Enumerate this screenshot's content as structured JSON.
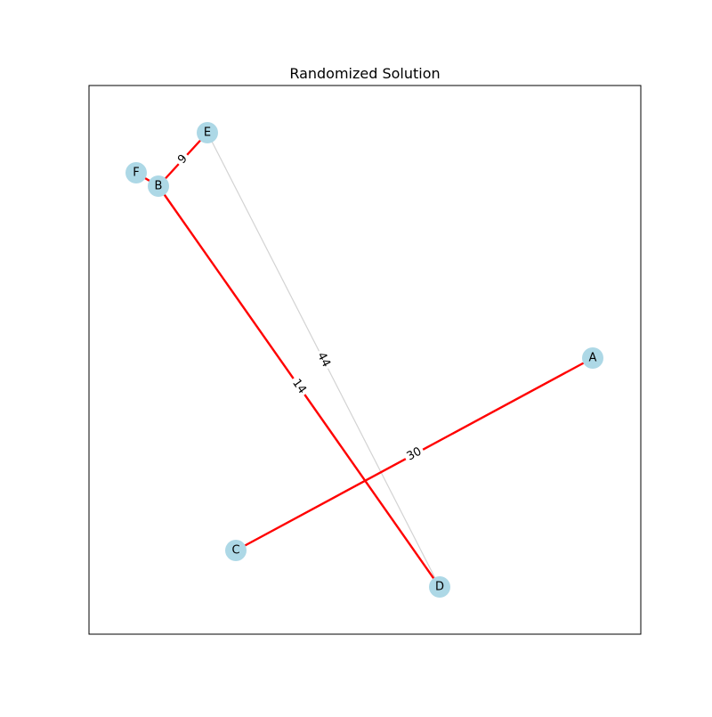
{
  "title": "Randomized Solution",
  "colors": {
    "node_fill": "#add8e6",
    "selected_edge": "#ff0000",
    "other_edge": "#d3d3d3",
    "label_bg": "#ffffff",
    "frame": "#000000"
  },
  "nodes": [
    {
      "id": "A",
      "label": "A"
    },
    {
      "id": "B",
      "label": "B"
    },
    {
      "id": "C",
      "label": "C"
    },
    {
      "id": "D",
      "label": "D"
    },
    {
      "id": "E",
      "label": "E"
    },
    {
      "id": "F",
      "label": "F"
    }
  ],
  "edges": [
    {
      "source": "E",
      "target": "D",
      "weight": "44",
      "selected": false
    },
    {
      "source": "F",
      "target": "B",
      "weight": "",
      "selected": true
    },
    {
      "source": "B",
      "target": "E",
      "weight": "9",
      "selected": true
    },
    {
      "source": "B",
      "target": "D",
      "weight": "14",
      "selected": true
    },
    {
      "source": "C",
      "target": "A",
      "weight": "30",
      "selected": true
    }
  ]
}
